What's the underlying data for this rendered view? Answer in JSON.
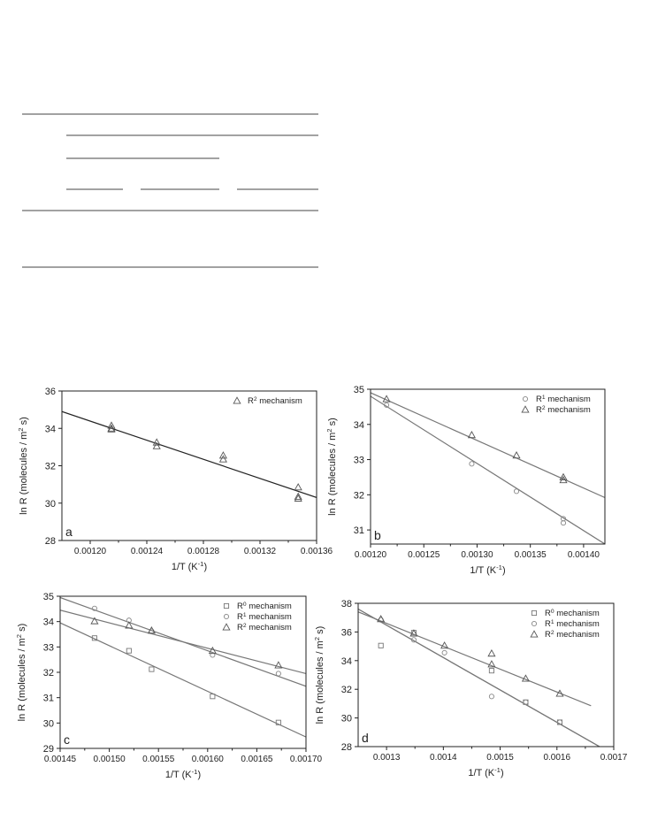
{
  "chart_data": [
    {
      "id": "a",
      "type": "scatter",
      "panel_label": "a",
      "xlabel": "1/T (K⁻¹)",
      "ylabel": "ln R (molecules / m² s)",
      "xlim": [
        0.00118,
        0.00136
      ],
      "ylim": [
        28,
        36
      ],
      "xticks": [
        "0.00120",
        "0.00124",
        "0.00128",
        "0.00132",
        "0.00136"
      ],
      "yticks": [
        "28",
        "30",
        "32",
        "34",
        "36"
      ],
      "legend": "top-right",
      "series": [
        {
          "name": "R² mechanism",
          "marker": "triangle",
          "color": "#555555",
          "points": [
            [
              0.001215,
              34.15
            ],
            [
              0.001215,
              34.0
            ],
            [
              0.001215,
              33.95
            ],
            [
              0.001247,
              33.25
            ],
            [
              0.001247,
              33.05
            ],
            [
              0.001294,
              32.55
            ],
            [
              0.001294,
              32.35
            ],
            [
              0.001347,
              30.85
            ],
            [
              0.001347,
              30.35
            ],
            [
              0.001347,
              30.25
            ]
          ],
          "fit": [
            [
              0.00118,
              34.9
            ],
            [
              0.00136,
              30.3
            ]
          ]
        }
      ]
    },
    {
      "id": "b",
      "type": "scatter",
      "panel_label": "b",
      "xlabel": "1/T (K⁻¹)",
      "ylabel": "ln R (molecules / m² s)",
      "xlim": [
        0.0012,
        0.00142
      ],
      "ylim": [
        30.6,
        35
      ],
      "xticks": [
        "0.00120",
        "0.00125",
        "0.00130",
        "0.00135",
        "0.00140"
      ],
      "yticks": [
        "31",
        "32",
        "33",
        "34",
        "35"
      ],
      "legend": "top-right",
      "series": [
        {
          "name": "R¹ mechanism",
          "marker": "circle",
          "color": "#888888",
          "points": [
            [
              0.001215,
              34.55
            ],
            [
              0.001295,
              32.88
            ],
            [
              0.001337,
              32.1
            ],
            [
              0.001381,
              31.32
            ],
            [
              0.001381,
              31.2
            ]
          ],
          "fit": [
            [
              0.0012,
              34.8
            ],
            [
              0.00142,
              30.6
            ]
          ]
        },
        {
          "name": "R² mechanism",
          "marker": "triangle",
          "color": "#555555",
          "points": [
            [
              0.001215,
              34.72
            ],
            [
              0.001295,
              33.7
            ],
            [
              0.001337,
              33.12
            ],
            [
              0.001381,
              32.5
            ],
            [
              0.001381,
              32.42
            ]
          ],
          "fit": [
            [
              0.0012,
              34.9
            ],
            [
              0.00142,
              31.92
            ]
          ]
        }
      ]
    },
    {
      "id": "c",
      "type": "scatter",
      "panel_label": "c",
      "xlabel": "1/T (K⁻¹)",
      "ylabel": "ln R (molecules / m² s)",
      "xlim": [
        0.00145,
        0.0017
      ],
      "ylim": [
        29,
        35
      ],
      "xticks": [
        "0.00145",
        "0.00150",
        "0.00155",
        "0.00160",
        "0.00165",
        "0.00170"
      ],
      "yticks": [
        "29",
        "30",
        "31",
        "32",
        "33",
        "34",
        "35"
      ],
      "legend": "top-right",
      "series": [
        {
          "name": "R⁰ mechanism",
          "marker": "square",
          "color": "#777777",
          "points": [
            [
              0.001485,
              33.35
            ],
            [
              0.00152,
              32.85
            ],
            [
              0.001543,
              32.12
            ],
            [
              0.001605,
              31.05
            ],
            [
              0.001672,
              30.02
            ]
          ],
          "fit": [
            [
              0.00145,
              33.95
            ],
            [
              0.0017,
              29.45
            ]
          ]
        },
        {
          "name": "R¹ mechanism",
          "marker": "circle",
          "color": "#888888",
          "points": [
            [
              0.001485,
              34.52
            ],
            [
              0.00152,
              34.05
            ],
            [
              0.001543,
              33.62
            ],
            [
              0.001605,
              32.68
            ],
            [
              0.001672,
              31.95
            ]
          ],
          "fit": [
            [
              0.00145,
              34.95
            ],
            [
              0.0017,
              31.45
            ]
          ]
        },
        {
          "name": "R² mechanism",
          "marker": "triangle",
          "color": "#555555",
          "points": [
            [
              0.001485,
              34.02
            ],
            [
              0.00152,
              33.85
            ],
            [
              0.001543,
              33.65
            ],
            [
              0.001605,
              32.85
            ],
            [
              0.001672,
              32.28
            ]
          ],
          "fit": [
            [
              0.00145,
              34.45
            ],
            [
              0.0017,
              31.95
            ]
          ]
        }
      ]
    },
    {
      "id": "d",
      "type": "scatter",
      "panel_label": "d",
      "xlabel": "1/T (K⁻¹)",
      "ylabel": "ln R (molecules / m² s)",
      "xlim": [
        0.00125,
        0.0017
      ],
      "ylim": [
        28,
        38
      ],
      "xticks": [
        "0.0013",
        "0.0014",
        "0.0015",
        "0.0016",
        "0.0017"
      ],
      "yticks": [
        "28",
        "30",
        "32",
        "34",
        "36",
        "38"
      ],
      "legend": "top-right",
      "series": [
        {
          "name": "R⁰ mechanism",
          "marker": "square",
          "color": "#777777",
          "points": [
            [
              0.00129,
              35.05
            ],
            [
              0.001348,
              35.95
            ],
            [
              0.001485,
              33.3
            ],
            [
              0.001545,
              31.1
            ],
            [
              0.001605,
              29.7
            ]
          ],
          "fit": [
            [
              0.00125,
              37.6
            ],
            [
              0.001675,
              28.0
            ]
          ]
        },
        {
          "name": "R¹ mechanism",
          "marker": "circle",
          "color": "#888888",
          "points": [
            [
              0.00129,
              36.85
            ],
            [
              0.001348,
              35.45
            ],
            [
              0.001402,
              34.55
            ],
            [
              0.001485,
              31.5
            ],
            [
              0.001545,
              31.1
            ],
            [
              0.001605,
              29.7
            ]
          ],
          "fit": [
            [
              0.00125,
              37.6
            ],
            [
              0.001675,
              28.0
            ]
          ]
        },
        {
          "name": "R² mechanism",
          "marker": "triangle",
          "color": "#555555",
          "points": [
            [
              0.00129,
              36.9
            ],
            [
              0.001348,
              35.9
            ],
            [
              0.001402,
              35.05
            ],
            [
              0.001485,
              34.5
            ],
            [
              0.001485,
              33.75
            ],
            [
              0.001545,
              32.75
            ],
            [
              0.001605,
              31.7
            ]
          ],
          "fit": [
            [
              0.00125,
              37.4
            ],
            [
              0.00166,
              30.85
            ]
          ]
        }
      ]
    }
  ]
}
